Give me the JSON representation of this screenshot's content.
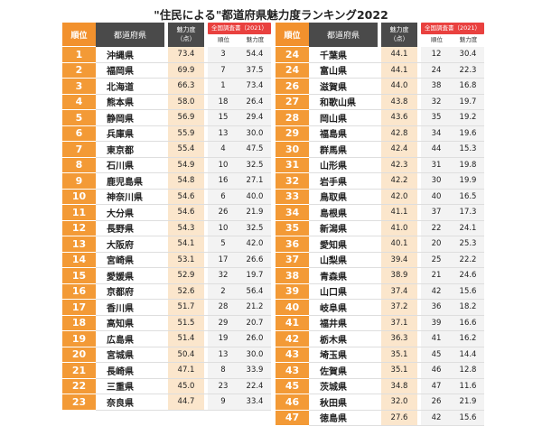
{
  "title": "\"住民による\"都道府県魅力度ランキング2022",
  "header": {
    "rank": "順位",
    "pref": "都道府県",
    "score": "魅力度",
    "score_unit": "（点）",
    "prev": "全国調査書（2021）",
    "prev_rank": "順位",
    "prev_score": "魅力度"
  },
  "left_rows": [
    {
      "rank": "1",
      "pref": "沖縄県",
      "score": "73.4",
      "prev_rank": "3",
      "prev_score": "54.4"
    },
    {
      "rank": "2",
      "pref": "福岡県",
      "score": "69.9",
      "prev_rank": "7",
      "prev_score": "37.5"
    },
    {
      "rank": "3",
      "pref": "北海道",
      "score": "66.3",
      "prev_rank": "1",
      "prev_score": "73.4"
    },
    {
      "rank": "4",
      "pref": "熊本県",
      "score": "58.0",
      "prev_rank": "18",
      "prev_score": "26.4"
    },
    {
      "rank": "5",
      "pref": "静岡県",
      "score": "56.9",
      "prev_rank": "15",
      "prev_score": "29.4"
    },
    {
      "rank": "6",
      "pref": "兵庫県",
      "score": "55.9",
      "prev_rank": "13",
      "prev_score": "30.0"
    },
    {
      "rank": "7",
      "pref": "東京都",
      "score": "55.4",
      "prev_rank": "4",
      "prev_score": "47.5"
    },
    {
      "rank": "8",
      "pref": "石川県",
      "score": "54.9",
      "prev_rank": "10",
      "prev_score": "32.5"
    },
    {
      "rank": "9",
      "pref": "鹿児島県",
      "score": "54.8",
      "prev_rank": "16",
      "prev_score": "27.1"
    },
    {
      "rank": "10",
      "pref": "神奈川県",
      "score": "54.6",
      "prev_rank": "6",
      "prev_score": "40.0"
    },
    {
      "rank": "11",
      "pref": "大分県",
      "score": "54.6",
      "prev_rank": "26",
      "prev_score": "21.9"
    },
    {
      "rank": "12",
      "pref": "長野県",
      "score": "54.3",
      "prev_rank": "10",
      "prev_score": "32.5"
    },
    {
      "rank": "13",
      "pref": "大阪府",
      "score": "54.1",
      "prev_rank": "5",
      "prev_score": "42.0"
    },
    {
      "rank": "14",
      "pref": "宮崎県",
      "score": "53.1",
      "prev_rank": "17",
      "prev_score": "26.6"
    },
    {
      "rank": "15",
      "pref": "愛媛県",
      "score": "52.9",
      "prev_rank": "32",
      "prev_score": "19.7"
    },
    {
      "rank": "16",
      "pref": "京都府",
      "score": "52.6",
      "prev_rank": "2",
      "prev_score": "56.4"
    },
    {
      "rank": "17",
      "pref": "香川県",
      "score": "51.7",
      "prev_rank": "28",
      "prev_score": "21.2"
    },
    {
      "rank": "18",
      "pref": "高知県",
      "score": "51.5",
      "prev_rank": "29",
      "prev_score": "20.7"
    },
    {
      "rank": "19",
      "pref": "広島県",
      "score": "51.4",
      "prev_rank": "19",
      "prev_score": "26.0"
    },
    {
      "rank": "20",
      "pref": "宮城県",
      "score": "50.4",
      "prev_rank": "13",
      "prev_score": "30.0"
    },
    {
      "rank": "21",
      "pref": "長崎県",
      "score": "47.1",
      "prev_rank": "8",
      "prev_score": "33.9"
    },
    {
      "rank": "22",
      "pref": "三重県",
      "score": "45.0",
      "prev_rank": "23",
      "prev_score": "22.4"
    },
    {
      "rank": "23",
      "pref": "奈良県",
      "score": "44.7",
      "prev_rank": "9",
      "prev_score": "33.4"
    }
  ],
  "right_rows": [
    {
      "rank": "24",
      "pref": "千葉県",
      "score": "44.1",
      "prev_rank": "12",
      "prev_score": "30.4"
    },
    {
      "rank": "24",
      "pref": "富山県",
      "score": "44.1",
      "prev_rank": "24",
      "prev_score": "22.3"
    },
    {
      "rank": "26",
      "pref": "滋賀県",
      "score": "44.0",
      "prev_rank": "38",
      "prev_score": "16.8"
    },
    {
      "rank": "27",
      "pref": "和歌山県",
      "score": "43.8",
      "prev_rank": "32",
      "prev_score": "19.7"
    },
    {
      "rank": "28",
      "pref": "岡山県",
      "score": "43.6",
      "prev_rank": "35",
      "prev_score": "19.2"
    },
    {
      "rank": "29",
      "pref": "福島県",
      "score": "42.8",
      "prev_rank": "34",
      "prev_score": "19.6"
    },
    {
      "rank": "30",
      "pref": "群馬県",
      "score": "42.4",
      "prev_rank": "44",
      "prev_score": "15.3"
    },
    {
      "rank": "31",
      "pref": "山形県",
      "score": "42.3",
      "prev_rank": "31",
      "prev_score": "19.8"
    },
    {
      "rank": "32",
      "pref": "岩手県",
      "score": "42.2",
      "prev_rank": "30",
      "prev_score": "19.9"
    },
    {
      "rank": "33",
      "pref": "鳥取県",
      "score": "42.0",
      "prev_rank": "40",
      "prev_score": "16.5"
    },
    {
      "rank": "34",
      "pref": "島根県",
      "score": "41.1",
      "prev_rank": "37",
      "prev_score": "17.3"
    },
    {
      "rank": "35",
      "pref": "新潟県",
      "score": "41.0",
      "prev_rank": "22",
      "prev_score": "24.1"
    },
    {
      "rank": "36",
      "pref": "愛知県",
      "score": "40.1",
      "prev_rank": "20",
      "prev_score": "25.3"
    },
    {
      "rank": "37",
      "pref": "山梨県",
      "score": "39.4",
      "prev_rank": "25",
      "prev_score": "22.2"
    },
    {
      "rank": "38",
      "pref": "青森県",
      "score": "38.9",
      "prev_rank": "21",
      "prev_score": "24.6"
    },
    {
      "rank": "39",
      "pref": "山口県",
      "score": "37.4",
      "prev_rank": "42",
      "prev_score": "15.6"
    },
    {
      "rank": "40",
      "pref": "岐阜県",
      "score": "37.2",
      "prev_rank": "36",
      "prev_score": "18.2"
    },
    {
      "rank": "41",
      "pref": "福井県",
      "score": "37.1",
      "prev_rank": "39",
      "prev_score": "16.6"
    },
    {
      "rank": "42",
      "pref": "栃木県",
      "score": "36.3",
      "prev_rank": "41",
      "prev_score": "16.2"
    },
    {
      "rank": "43",
      "pref": "埼玉県",
      "score": "35.1",
      "prev_rank": "45",
      "prev_score": "14.4"
    },
    {
      "rank": "43",
      "pref": "佐賀県",
      "score": "35.1",
      "prev_rank": "46",
      "prev_score": "12.8"
    },
    {
      "rank": "45",
      "pref": "茨城県",
      "score": "34.8",
      "prev_rank": "47",
      "prev_score": "11.6"
    },
    {
      "rank": "46",
      "pref": "秋田県",
      "score": "32.0",
      "prev_rank": "26",
      "prev_score": "21.9"
    },
    {
      "rank": "47",
      "pref": "徳島県",
      "score": "27.6",
      "prev_rank": "42",
      "prev_score": "15.6"
    }
  ]
}
